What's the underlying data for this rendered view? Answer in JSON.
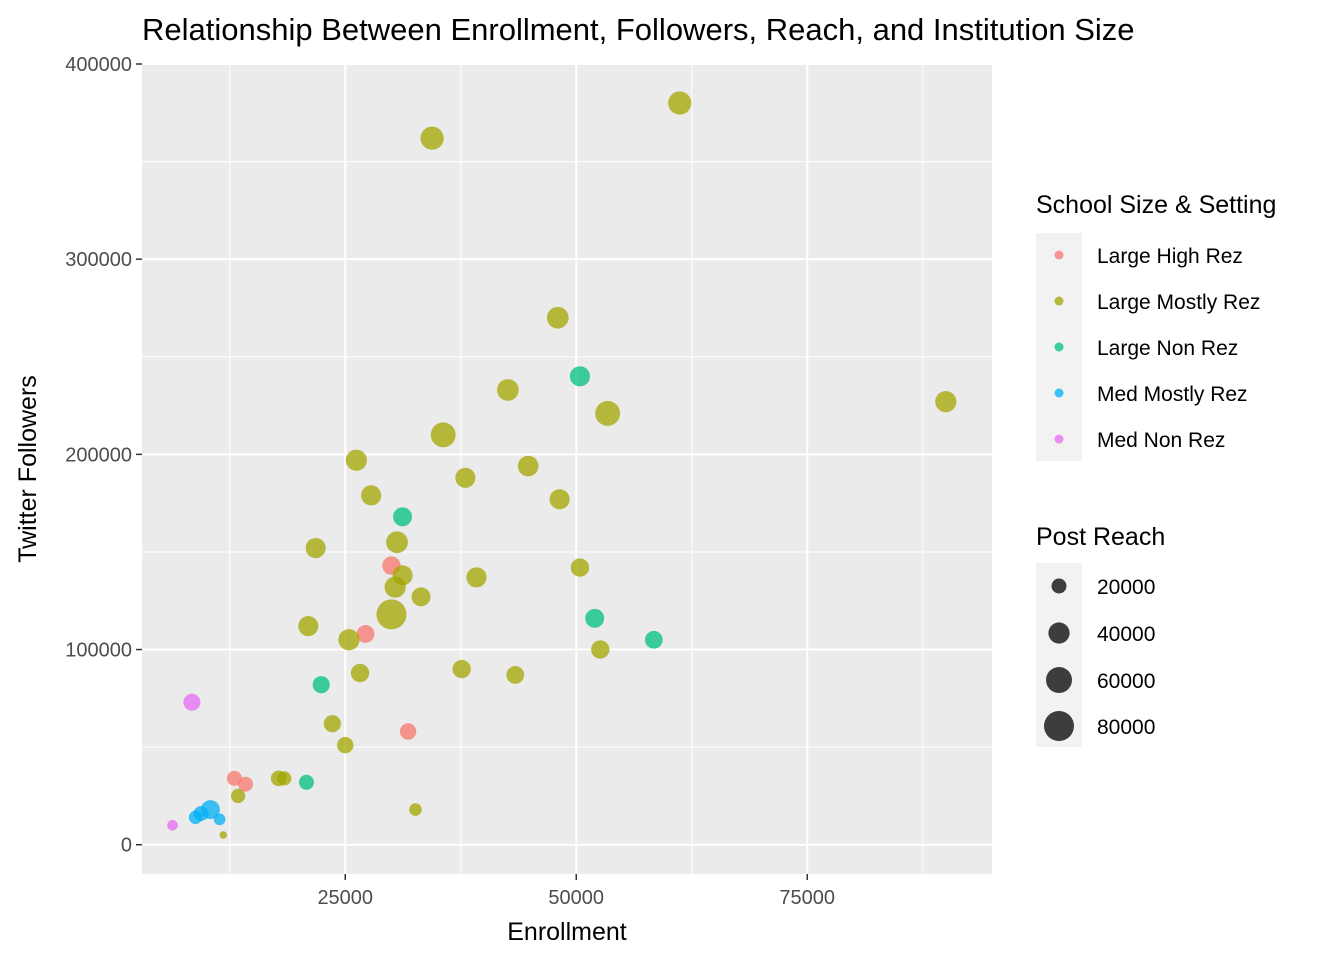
{
  "chart_data": {
    "type": "scatter",
    "title": "Relationship Between Enrollment, Followers, Reach, and Institution Size",
    "xlabel": "Enrollment",
    "ylabel": "Twitter Followers",
    "xlim": [
      3000,
      95000
    ],
    "ylim": [
      -15000,
      400000
    ],
    "x_ticks": [
      25000,
      50000,
      75000
    ],
    "x_tick_labels": [
      "25000",
      "50000",
      "75000"
    ],
    "y_ticks": [
      0,
      100000,
      200000,
      300000,
      400000
    ],
    "y_tick_labels": [
      "0",
      "100000",
      "200000",
      "300000",
      "400000"
    ],
    "grid": true,
    "legend_position": "right",
    "color_legend": {
      "title": "School Size & Setting",
      "entries": [
        {
          "name": "Large High Rez",
          "color": "#F8766D"
        },
        {
          "name": "Large Mostly Rez",
          "color": "#A3A500"
        },
        {
          "name": "Large Non Rez",
          "color": "#00BF7D"
        },
        {
          "name": "Med Mostly Rez",
          "color": "#00B0F6"
        },
        {
          "name": "Med Non Rez",
          "color": "#E76BF3"
        }
      ]
    },
    "size_legend": {
      "title": "Post Reach",
      "entries": [
        {
          "label": "20000",
          "value": 20000
        },
        {
          "label": "40000",
          "value": 40000
        },
        {
          "label": "60000",
          "value": 60000
        },
        {
          "label": "80000",
          "value": 80000
        }
      ]
    },
    "series": [
      {
        "name": "Large High Rez",
        "points": [
          {
            "x": 30000,
            "y": 143000,
            "reach": 30000
          },
          {
            "x": 27200,
            "y": 108000,
            "reach": 28000
          },
          {
            "x": 31800,
            "y": 58000,
            "reach": 24000
          },
          {
            "x": 13000,
            "y": 34000,
            "reach": 20000
          },
          {
            "x": 14200,
            "y": 31000,
            "reach": 20000
          }
        ]
      },
      {
        "name": "Large Mostly Rez",
        "points": [
          {
            "x": 61200,
            "y": 380000,
            "reach": 48000
          },
          {
            "x": 34400,
            "y": 362000,
            "reach": 48000
          },
          {
            "x": 48000,
            "y": 270000,
            "reach": 42000
          },
          {
            "x": 42600,
            "y": 233000,
            "reach": 42000
          },
          {
            "x": 53400,
            "y": 221000,
            "reach": 55000
          },
          {
            "x": 90000,
            "y": 227000,
            "reach": 40000
          },
          {
            "x": 35600,
            "y": 210000,
            "reach": 55000
          },
          {
            "x": 26200,
            "y": 197000,
            "reach": 40000
          },
          {
            "x": 44800,
            "y": 194000,
            "reach": 38000
          },
          {
            "x": 38000,
            "y": 188000,
            "reach": 36000
          },
          {
            "x": 27800,
            "y": 179000,
            "reach": 36000
          },
          {
            "x": 48200,
            "y": 177000,
            "reach": 36000
          },
          {
            "x": 21800,
            "y": 152000,
            "reach": 36000
          },
          {
            "x": 30600,
            "y": 155000,
            "reach": 42000
          },
          {
            "x": 31200,
            "y": 138000,
            "reach": 36000
          },
          {
            "x": 50400,
            "y": 142000,
            "reach": 30000
          },
          {
            "x": 39200,
            "y": 137000,
            "reach": 36000
          },
          {
            "x": 30400,
            "y": 132000,
            "reach": 40000
          },
          {
            "x": 33200,
            "y": 127000,
            "reach": 32000
          },
          {
            "x": 30000,
            "y": 118000,
            "reach": 80000
          },
          {
            "x": 21000,
            "y": 112000,
            "reach": 36000
          },
          {
            "x": 25400,
            "y": 105000,
            "reach": 40000
          },
          {
            "x": 52600,
            "y": 100000,
            "reach": 30000
          },
          {
            "x": 26600,
            "y": 88000,
            "reach": 30000
          },
          {
            "x": 37600,
            "y": 90000,
            "reach": 30000
          },
          {
            "x": 43400,
            "y": 87000,
            "reach": 28000
          },
          {
            "x": 23600,
            "y": 62000,
            "reach": 26000
          },
          {
            "x": 25000,
            "y": 51000,
            "reach": 24000
          },
          {
            "x": 17800,
            "y": 34000,
            "reach": 22000
          },
          {
            "x": 18400,
            "y": 34000,
            "reach": 18000
          },
          {
            "x": 13400,
            "y": 25000,
            "reach": 18000
          },
          {
            "x": 32600,
            "y": 18000,
            "reach": 14000
          },
          {
            "x": 11800,
            "y": 5000,
            "reach": 5000
          }
        ]
      },
      {
        "name": "Large Non Rez",
        "points": [
          {
            "x": 50400,
            "y": 240000,
            "reach": 36000
          },
          {
            "x": 31200,
            "y": 168000,
            "reach": 32000
          },
          {
            "x": 52000,
            "y": 116000,
            "reach": 32000
          },
          {
            "x": 58400,
            "y": 105000,
            "reach": 28000
          },
          {
            "x": 22400,
            "y": 82000,
            "reach": 26000
          },
          {
            "x": 20800,
            "y": 32000,
            "reach": 20000
          }
        ]
      },
      {
        "name": "Med Mostly Rez",
        "points": [
          {
            "x": 10400,
            "y": 18000,
            "reach": 32000
          },
          {
            "x": 9400,
            "y": 16000,
            "reach": 20000
          },
          {
            "x": 8800,
            "y": 14000,
            "reach": 16000
          },
          {
            "x": 11400,
            "y": 13000,
            "reach": 12000
          }
        ]
      },
      {
        "name": "Med Non Rez",
        "points": [
          {
            "x": 8400,
            "y": 73000,
            "reach": 26000
          },
          {
            "x": 6300,
            "y": 10000,
            "reach": 10000
          }
        ]
      }
    ]
  }
}
